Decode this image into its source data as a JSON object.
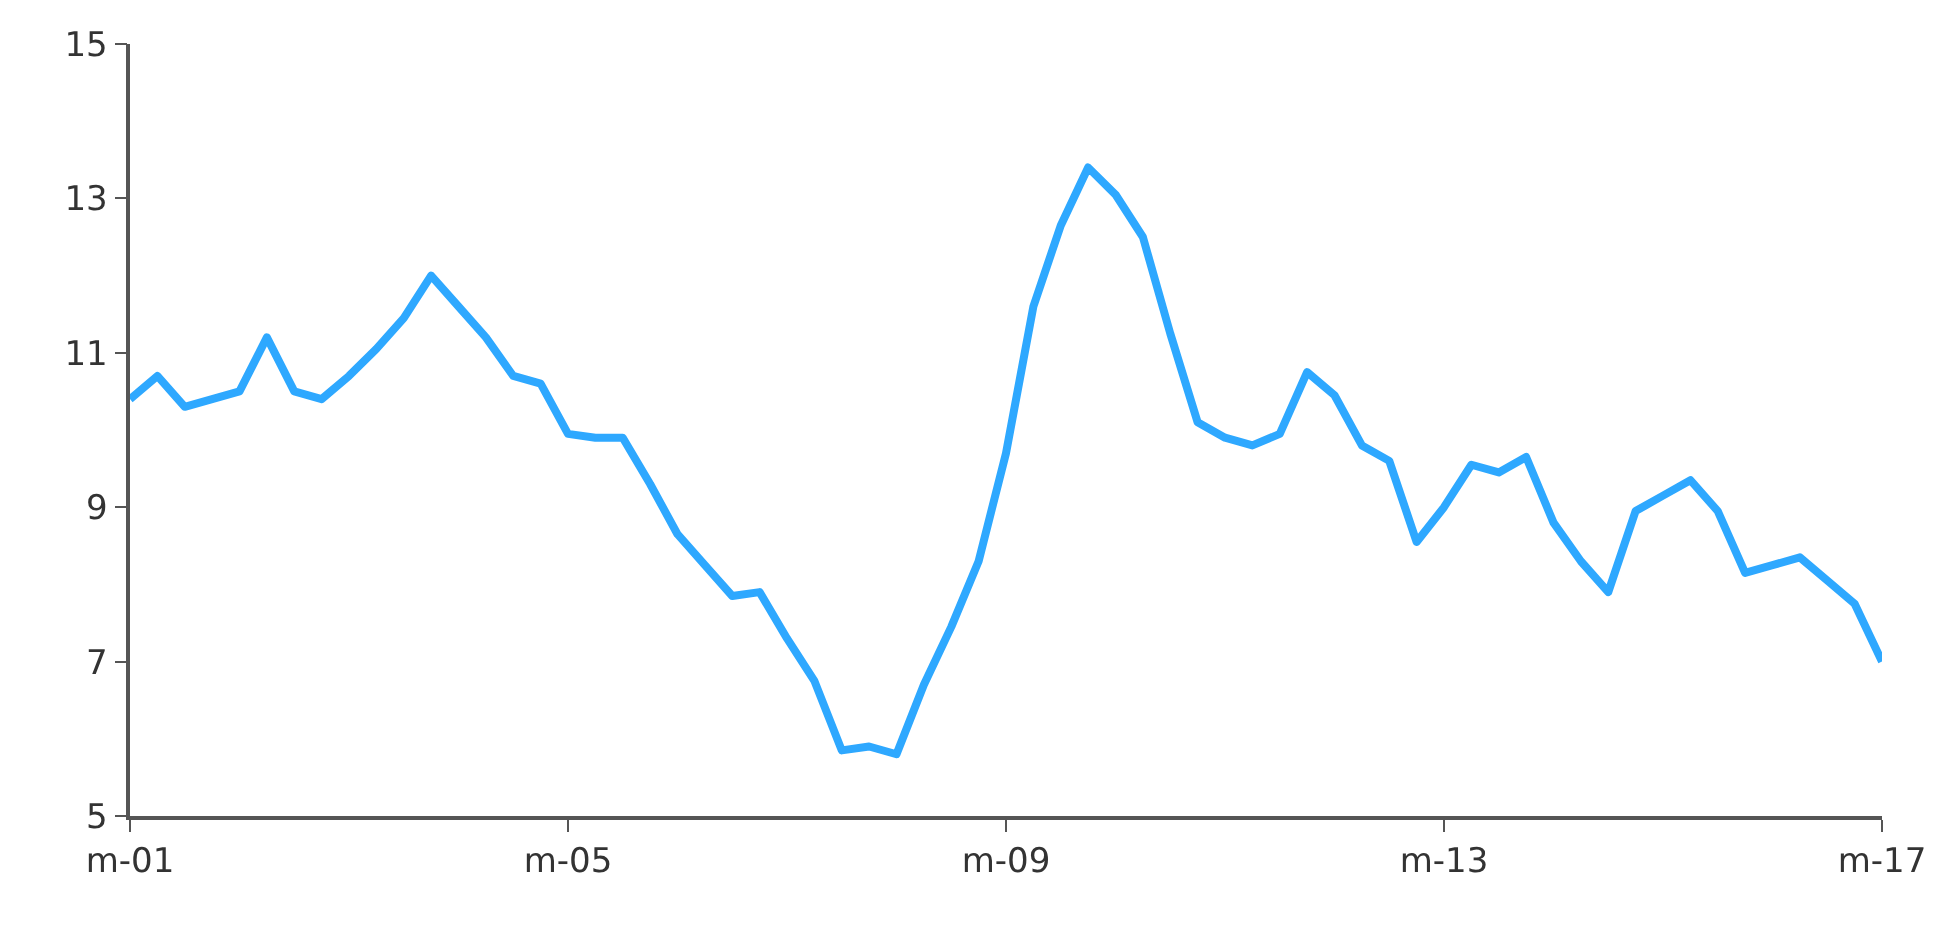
{
  "chart_data": {
    "type": "line",
    "categories": [
      "m-01",
      null,
      null,
      null,
      null,
      null,
      null,
      null,
      null,
      null,
      null,
      null,
      null,
      null,
      null,
      null,
      "m-05",
      null,
      null,
      null,
      null,
      null,
      null,
      null,
      null,
      null,
      null,
      null,
      null,
      null,
      null,
      null,
      "m-09",
      null,
      null,
      null,
      null,
      null,
      null,
      null,
      null,
      null,
      null,
      null,
      null,
      null,
      null,
      null,
      "m-13",
      null,
      null,
      null,
      null,
      null,
      null,
      null,
      null,
      null,
      null,
      null,
      null,
      null,
      null,
      null,
      "m-17"
    ],
    "series": [
      {
        "color": "#2ea8ff",
        "values": [
          10.4,
          10.7,
          10.3,
          10.4,
          10.5,
          11.2,
          10.5,
          10.4,
          10.7,
          11.05,
          11.45,
          12.0,
          11.6,
          11.2,
          10.7,
          10.6,
          9.95,
          9.9,
          9.9,
          9.3,
          8.65,
          8.25,
          7.85,
          7.9,
          7.3,
          6.75,
          5.85,
          5.9,
          5.8,
          6.7,
          7.45,
          8.3,
          9.7,
          11.6,
          12.65,
          13.4,
          13.05,
          12.5,
          11.25,
          10.1,
          9.9,
          9.8,
          9.95,
          10.75,
          10.45,
          9.8,
          9.6,
          8.55,
          9.0,
          9.55,
          9.45,
          9.65,
          8.8,
          8.3,
          7.9,
          8.95,
          9.15,
          9.35,
          8.95,
          8.15,
          8.25,
          8.35,
          8.05,
          7.75,
          7.0
        ]
      }
    ],
    "ylim": [
      5,
      15
    ],
    "yticks": [
      5,
      7,
      9,
      11,
      13,
      15
    ],
    "grid": false,
    "marker": "none",
    "line_style": "solid"
  }
}
